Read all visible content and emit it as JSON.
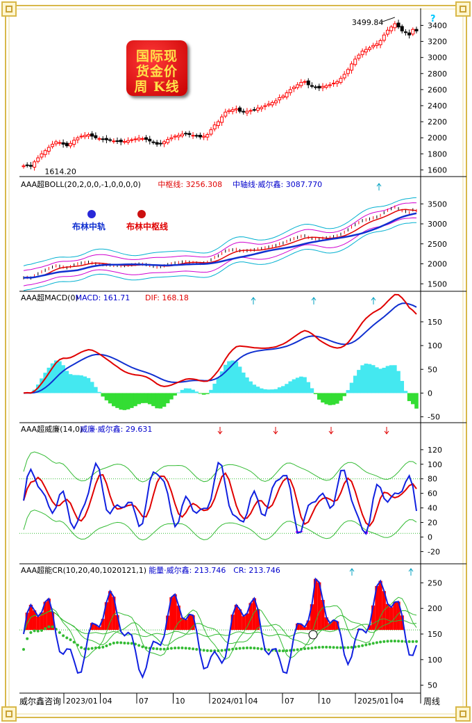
{
  "page": {
    "stamp_lines": [
      "国际现",
      "货金价",
      "周 K线"
    ],
    "help_icon": "?",
    "footer_name": "威尔鑫咨询",
    "period_label": "周线"
  },
  "chart_data": [
    {
      "type": "candlestick",
      "panel": "price",
      "annotations": {
        "high_label": "3499.84",
        "low_label": "1614.20"
      },
      "ylim": [
        1560,
        3560
      ],
      "yticks": [
        1600,
        1800,
        2000,
        2200,
        2400,
        2600,
        2800,
        3000,
        3200,
        3400
      ],
      "close": [
        1650,
        1660,
        1645,
        1700,
        1750,
        1800,
        1840,
        1880,
        1920,
        1950,
        1940,
        1920,
        1900,
        1930,
        1970,
        2000,
        2020,
        2030,
        2040,
        2020,
        2000,
        1990,
        1980,
        1975,
        1970,
        1960,
        1960,
        1950,
        1955,
        1965,
        1975,
        1985,
        1995,
        1990,
        1980,
        1960,
        1940,
        1920,
        1930,
        1950,
        1980,
        2000,
        2020,
        2030,
        2045,
        2050,
        2040,
        2030,
        2020,
        2010,
        2020,
        2040,
        2100,
        2160,
        2200,
        2260,
        2320,
        2340,
        2350,
        2360,
        2330,
        2320,
        2330,
        2340,
        2350,
        2370,
        2380,
        2400,
        2420,
        2440,
        2460,
        2500,
        2520,
        2560,
        2600,
        2630,
        2660,
        2690,
        2700,
        2660,
        2640,
        2630,
        2620,
        2640,
        2650,
        2660,
        2680,
        2700,
        2740,
        2790,
        2850,
        2920,
        2980,
        3030,
        3080,
        3100,
        3120,
        3150,
        3170,
        3210,
        3280,
        3340,
        3380,
        3420,
        3380,
        3330,
        3310,
        3280,
        3350,
        3330
      ]
    },
    {
      "type": "line",
      "panel": "boll",
      "title": "AAA超BOLL(20,2,0,0,-1,0,0,0,0)",
      "readouts": [
        {
          "label": "中枢线: 3256.308",
          "color": "#e00000"
        },
        {
          "label": "中轴线·威尔鑫: 3087.770",
          "color": "#0000cc"
        }
      ],
      "legend": [
        {
          "name": "布林中轨",
          "color": "#1030d0",
          "dot": "#2828d8"
        },
        {
          "name": "布林中枢线",
          "color": "#e00000",
          "dot": "#cc1010"
        }
      ],
      "ylim": [
        1400,
        3800
      ],
      "yticks": [
        1500,
        2000,
        2500,
        3000,
        3500
      ]
    },
    {
      "type": "line",
      "panel": "macd",
      "title": "AAA超MACD(0)",
      "readouts": [
        {
          "label": "MACD: 161.71",
          "color": "#0000cc"
        },
        {
          "label": "DIF: 168.18",
          "color": "#e00000"
        }
      ],
      "ylim": [
        -55,
        185
      ],
      "yticks": [
        -50,
        0,
        50,
        100,
        150
      ]
    },
    {
      "type": "line",
      "panel": "wr",
      "title": "AAA超威廉(14,0)",
      "readouts": [
        {
          "label": "威廉·威尔鑫: 29.631",
          "color": "#0000cc"
        }
      ],
      "ylim": [
        -32,
        138
      ],
      "yticks": [
        -20,
        0,
        20,
        40,
        60,
        80,
        100,
        120
      ]
    },
    {
      "type": "area",
      "panel": "cr",
      "title": "AAA超能CR(10,20,40,1020121,1)",
      "readouts": [
        {
          "label": "能量·威尔鑫: 213.746",
          "color": "#0000cc"
        },
        {
          "label": "CR: 213.746",
          "color": "#0000cc"
        }
      ],
      "ylim": [
        40,
        260
      ],
      "yticks": [
        50,
        100,
        150,
        200,
        250
      ],
      "baseline": 158,
      "xticks": [
        "2023/01",
        "04",
        "07",
        "10",
        "2024/01",
        "04",
        "07",
        "10",
        "2025/01",
        "04"
      ]
    }
  ],
  "colors": {
    "background": "#ffffff",
    "bull": "#ff0000",
    "bear": "#000000",
    "boll_mid": "#e00000",
    "boll_axis": "#1030d0",
    "boll_band": "#00b0d0",
    "boll_band2": "#d000d0",
    "macd_pos": "#44e8f0",
    "macd_neg": "#33dd33",
    "wr_main": "#1020e0",
    "wr_avg": "#e00000",
    "wr_band": "#33bb33",
    "wr_fill": "#ff00ff",
    "cr_fill": "#ff0000",
    "cr_line": "#1020e0",
    "cr_ma": "#33bb33",
    "signal_arrow": "#00a0c0",
    "sell_arrow": "#e00000",
    "frame_gold": "#d8b84a"
  }
}
